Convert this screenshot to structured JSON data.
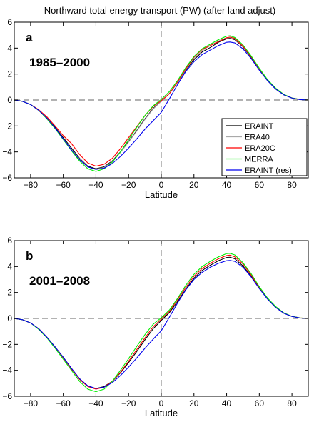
{
  "figure": {
    "title": "Northward total energy transport (PW) (after land adjust)"
  },
  "chart_data": [
    {
      "type": "line",
      "panel_letter": "a",
      "period": "1985–2000",
      "xlabel": "Latitude",
      "ylabel": "",
      "xlim": [
        -90,
        90
      ],
      "ylim": [
        -6,
        6
      ],
      "xticks": [
        -80,
        -60,
        -40,
        -20,
        0,
        20,
        40,
        60,
        80
      ],
      "yticks": [
        -6,
        -4,
        -2,
        0,
        2,
        4,
        6
      ],
      "reference_lines": {
        "y_zero": true,
        "x_zero": true,
        "style": "dashed"
      },
      "legend_position": "bottom-right",
      "series": [
        {
          "name": "ERAINT",
          "color": "#000000",
          "x": [
            -90,
            -85,
            -80,
            -75,
            -70,
            -65,
            -60,
            -55,
            -50,
            -45,
            -40,
            -35,
            -30,
            -25,
            -20,
            -15,
            -10,
            -5,
            0,
            5,
            10,
            15,
            20,
            25,
            30,
            35,
            40,
            42,
            45,
            50,
            55,
            60,
            65,
            70,
            75,
            80,
            85,
            90
          ],
          "y": [
            0,
            -0.1,
            -0.35,
            -0.8,
            -1.4,
            -2.1,
            -2.9,
            -3.7,
            -4.5,
            -5.1,
            -5.3,
            -5.15,
            -4.7,
            -4.0,
            -3.2,
            -2.35,
            -1.45,
            -0.65,
            -0.1,
            0.5,
            1.35,
            2.3,
            3.1,
            3.7,
            4.05,
            4.45,
            4.72,
            4.75,
            4.65,
            4.1,
            3.3,
            2.35,
            1.5,
            0.85,
            0.4,
            0.15,
            0.03,
            0
          ]
        },
        {
          "name": "ERA40",
          "color": "#a9a9a9",
          "x": [
            -90,
            -85,
            -80,
            -75,
            -70,
            -65,
            -60,
            -55,
            -50,
            -45,
            -40,
            -35,
            -30,
            -25,
            -20,
            -15,
            -10,
            -5,
            0,
            5,
            10,
            15,
            20,
            25,
            30,
            35,
            40,
            42,
            45,
            50,
            55,
            60,
            65,
            70,
            75,
            80,
            85,
            90
          ],
          "y": [
            0,
            -0.1,
            -0.35,
            -0.8,
            -1.45,
            -2.2,
            -3.0,
            -3.8,
            -4.55,
            -5.15,
            -5.35,
            -5.2,
            -4.75,
            -4.05,
            -3.25,
            -2.4,
            -1.5,
            -0.7,
            -0.1,
            0.5,
            1.35,
            2.35,
            3.2,
            3.8,
            4.2,
            4.55,
            4.8,
            4.82,
            4.7,
            4.15,
            3.35,
            2.4,
            1.55,
            0.9,
            0.42,
            0.16,
            0.04,
            0
          ]
        },
        {
          "name": "ERA20C",
          "color": "#ff0000",
          "x": [
            -90,
            -85,
            -80,
            -75,
            -70,
            -65,
            -60,
            -55,
            -50,
            -45,
            -40,
            -35,
            -30,
            -25,
            -20,
            -15,
            -10,
            -5,
            0,
            5,
            10,
            15,
            20,
            25,
            30,
            35,
            40,
            42,
            45,
            50,
            55,
            60,
            65,
            70,
            75,
            80,
            85,
            90
          ],
          "y": [
            0,
            -0.1,
            -0.35,
            -0.75,
            -1.3,
            -2.0,
            -2.75,
            -3.35,
            -4.2,
            -4.85,
            -5.1,
            -4.95,
            -4.5,
            -3.75,
            -2.9,
            -2.05,
            -1.2,
            -0.5,
            -0.05,
            0.5,
            1.4,
            2.4,
            3.3,
            3.9,
            4.2,
            4.5,
            4.8,
            4.85,
            4.75,
            4.15,
            3.35,
            2.4,
            1.55,
            0.9,
            0.42,
            0.16,
            0.04,
            0
          ]
        },
        {
          "name": "MERRA",
          "color": "#00ee00",
          "x": [
            -90,
            -85,
            -80,
            -75,
            -70,
            -65,
            -60,
            -55,
            -50,
            -45,
            -40,
            -35,
            -30,
            -25,
            -20,
            -15,
            -10,
            -5,
            0,
            5,
            10,
            15,
            20,
            25,
            30,
            35,
            40,
            42,
            45,
            50,
            55,
            60,
            65,
            70,
            75,
            80,
            85,
            90
          ],
          "y": [
            0,
            -0.1,
            -0.35,
            -0.8,
            -1.45,
            -2.2,
            -3.05,
            -3.9,
            -4.7,
            -5.3,
            -5.5,
            -5.3,
            -4.8,
            -4.0,
            -3.05,
            -2.1,
            -1.2,
            -0.45,
            0.05,
            0.65,
            1.5,
            2.5,
            3.35,
            3.95,
            4.3,
            4.65,
            4.92,
            4.95,
            4.82,
            4.25,
            3.4,
            2.45,
            1.58,
            0.92,
            0.43,
            0.16,
            0.04,
            0
          ]
        },
        {
          "name": "ERAINT (res)",
          "color": "#0000ee",
          "x": [
            -90,
            -85,
            -80,
            -75,
            -70,
            -65,
            -60,
            -55,
            -50,
            -45,
            -40,
            -35,
            -30,
            -25,
            -20,
            -15,
            -10,
            -5,
            0,
            5,
            10,
            15,
            20,
            25,
            30,
            35,
            40,
            42,
            45,
            50,
            55,
            60,
            65,
            70,
            75,
            80,
            85,
            90
          ],
          "y": [
            0,
            -0.1,
            -0.35,
            -0.8,
            -1.4,
            -2.15,
            -3.0,
            -3.85,
            -4.6,
            -5.15,
            -5.35,
            -5.25,
            -4.9,
            -4.35,
            -3.7,
            -3.0,
            -2.25,
            -1.6,
            -0.95,
            0.1,
            1.2,
            2.2,
            2.95,
            3.5,
            3.85,
            4.2,
            4.45,
            4.47,
            4.4,
            3.95,
            3.2,
            2.3,
            1.5,
            0.85,
            0.4,
            0.15,
            0.03,
            0
          ]
        }
      ]
    },
    {
      "type": "line",
      "panel_letter": "b",
      "period": "2001–2008",
      "xlabel": "Latitude",
      "ylabel": "",
      "xlim": [
        -90,
        90
      ],
      "ylim": [
        -6,
        6
      ],
      "xticks": [
        -80,
        -60,
        -40,
        -20,
        0,
        20,
        40,
        60,
        80
      ],
      "yticks": [
        -6,
        -4,
        -2,
        0,
        2,
        4,
        6
      ],
      "reference_lines": {
        "y_zero": true,
        "x_zero": true,
        "style": "dashed"
      },
      "legend_position": "none",
      "series": [
        {
          "name": "ERAINT",
          "color": "#000000",
          "x": [
            -90,
            -85,
            -80,
            -75,
            -70,
            -65,
            -60,
            -55,
            -50,
            -45,
            -40,
            -35,
            -30,
            -25,
            -20,
            -15,
            -10,
            -5,
            0,
            5,
            10,
            15,
            20,
            25,
            30,
            35,
            40,
            42,
            45,
            50,
            55,
            60,
            65,
            70,
            75,
            80,
            85,
            90
          ],
          "y": [
            0,
            -0.1,
            -0.35,
            -0.8,
            -1.45,
            -2.2,
            -3.0,
            -3.85,
            -4.65,
            -5.2,
            -5.4,
            -5.25,
            -4.85,
            -4.2,
            -3.4,
            -2.55,
            -1.65,
            -0.8,
            -0.15,
            0.45,
            1.3,
            2.25,
            3.1,
            3.7,
            4.1,
            4.45,
            4.7,
            4.72,
            4.6,
            4.05,
            3.25,
            2.35,
            1.5,
            0.85,
            0.4,
            0.15,
            0.03,
            0
          ]
        },
        {
          "name": "ERA20C",
          "color": "#ff0000",
          "x": [
            -90,
            -85,
            -80,
            -75,
            -70,
            -65,
            -60,
            -55,
            -50,
            -45,
            -40,
            -35,
            -30,
            -25,
            -20,
            -15,
            -10,
            -5,
            0,
            5,
            10,
            15,
            20,
            25,
            30,
            35,
            40,
            42,
            45,
            50,
            55,
            60,
            65,
            70,
            75,
            80,
            85,
            90
          ],
          "y": [
            0,
            -0.1,
            -0.35,
            -0.8,
            -1.45,
            -2.2,
            -3.05,
            -3.9,
            -4.7,
            -5.25,
            -5.45,
            -5.3,
            -4.85,
            -4.15,
            -3.3,
            -2.4,
            -1.5,
            -0.65,
            -0.05,
            0.55,
            1.45,
            2.4,
            3.25,
            3.85,
            4.25,
            4.6,
            4.85,
            4.88,
            4.75,
            4.2,
            3.35,
            2.4,
            1.55,
            0.9,
            0.42,
            0.16,
            0.04,
            0
          ]
        },
        {
          "name": "MERRA",
          "color": "#00ee00",
          "x": [
            -90,
            -85,
            -80,
            -75,
            -70,
            -65,
            -60,
            -55,
            -50,
            -45,
            -40,
            -35,
            -30,
            -25,
            -20,
            -15,
            -10,
            -5,
            0,
            5,
            10,
            15,
            20,
            25,
            30,
            35,
            40,
            42,
            45,
            50,
            55,
            60,
            65,
            70,
            75,
            80,
            85,
            90
          ],
          "y": [
            0,
            -0.1,
            -0.35,
            -0.85,
            -1.5,
            -2.3,
            -3.15,
            -4.0,
            -4.85,
            -5.45,
            -5.65,
            -5.45,
            -4.85,
            -4.0,
            -3.1,
            -2.15,
            -1.25,
            -0.45,
            0.05,
            0.65,
            1.55,
            2.55,
            3.4,
            4.0,
            4.4,
            4.75,
            5.0,
            5.02,
            4.9,
            4.3,
            3.45,
            2.45,
            1.58,
            0.92,
            0.43,
            0.16,
            0.04,
            0
          ]
        },
        {
          "name": "ERAINT (res)",
          "color": "#0000ee",
          "x": [
            -90,
            -85,
            -80,
            -75,
            -70,
            -65,
            -60,
            -55,
            -50,
            -45,
            -40,
            -35,
            -30,
            -25,
            -20,
            -15,
            -10,
            -5,
            0,
            5,
            10,
            15,
            20,
            25,
            30,
            35,
            40,
            42,
            45,
            50,
            55,
            60,
            65,
            70,
            75,
            80,
            85,
            90
          ],
          "y": [
            0,
            -0.1,
            -0.35,
            -0.8,
            -1.45,
            -2.2,
            -3.0,
            -3.85,
            -4.65,
            -5.2,
            -5.4,
            -5.3,
            -4.95,
            -4.4,
            -3.75,
            -3.05,
            -2.3,
            -1.6,
            -0.95,
            0.1,
            1.2,
            2.2,
            3.0,
            3.55,
            3.95,
            4.25,
            4.45,
            4.47,
            4.4,
            3.95,
            3.2,
            2.3,
            1.5,
            0.85,
            0.4,
            0.15,
            0.03,
            0
          ]
        }
      ]
    }
  ]
}
